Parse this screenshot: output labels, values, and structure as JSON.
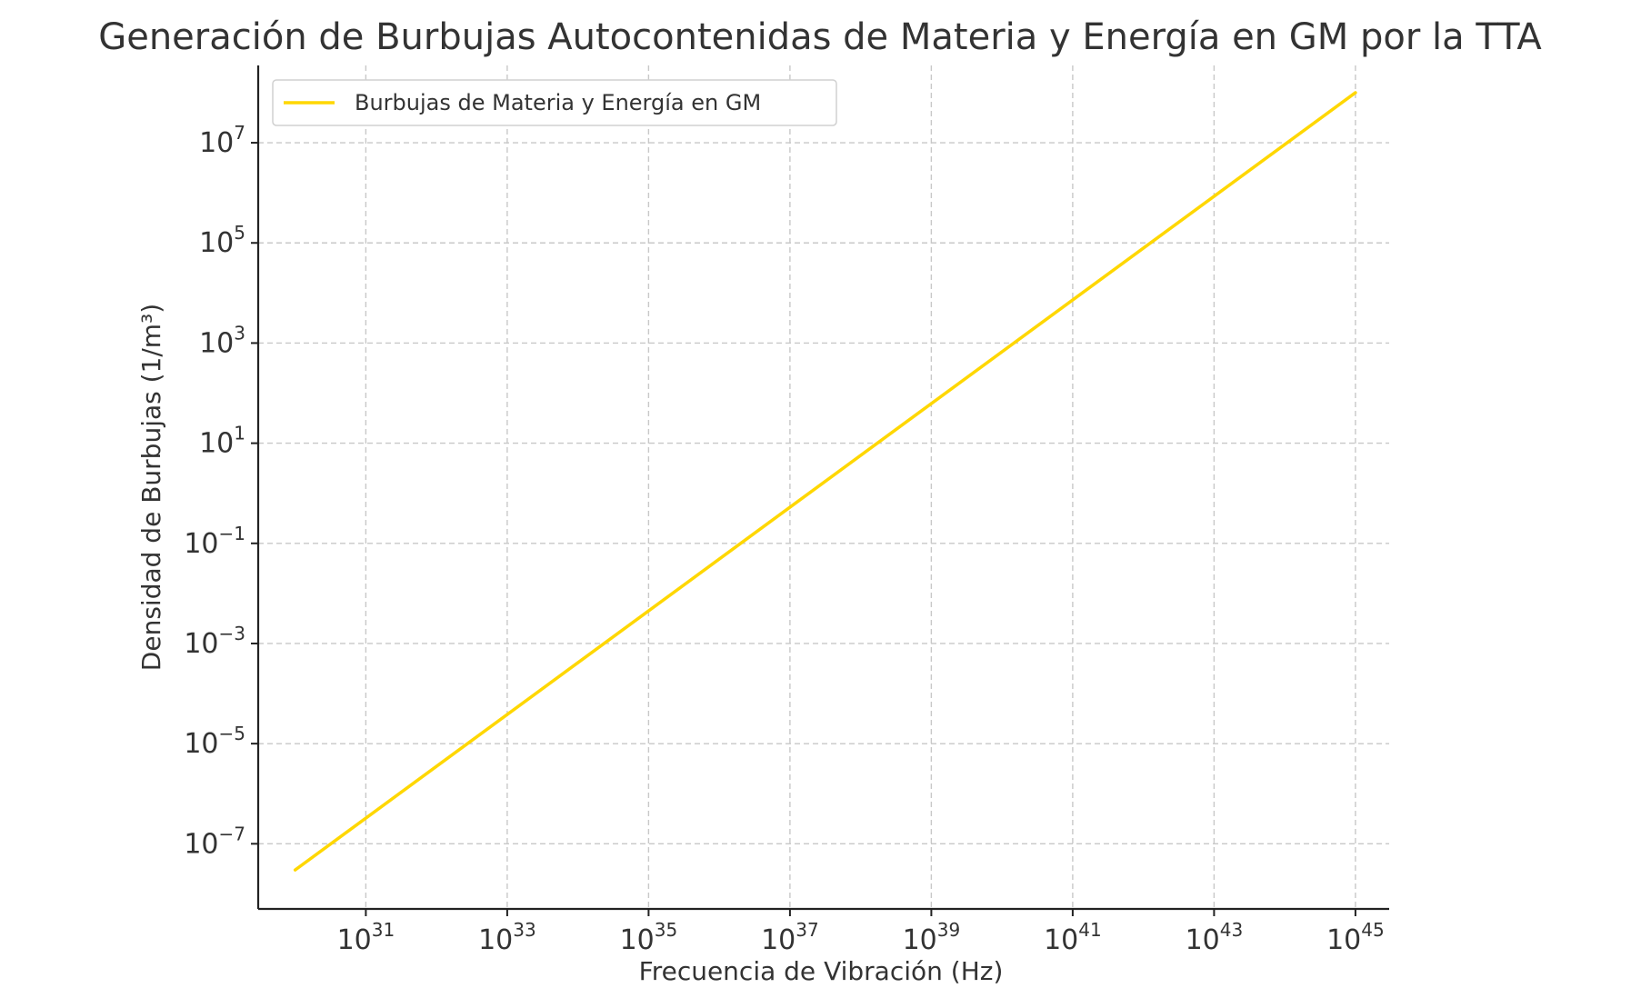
{
  "chart_data": {
    "type": "line",
    "title": "Generación de Burbujas Autocontenidas de Materia y Energía en GM por la TTA",
    "xlabel": "Frecuencia de Vibración (Hz)",
    "ylabel": "Densidad de Burbujas (1/m³)",
    "x_scale": "log",
    "y_scale": "log",
    "xlim": [
      3e+29,
      3e+45
    ],
    "ylim": [
      5e-09,
      350000000.0
    ],
    "grid": true,
    "legend_position": "upper-left",
    "x_ticks": [
      {
        "value": 1e+31,
        "base": "10",
        "exp": "31"
      },
      {
        "value": 1e+33,
        "base": "10",
        "exp": "33"
      },
      {
        "value": 1e+35,
        "base": "10",
        "exp": "35"
      },
      {
        "value": 1e+37,
        "base": "10",
        "exp": "37"
      },
      {
        "value": 1e+39,
        "base": "10",
        "exp": "39"
      },
      {
        "value": 1e+41,
        "base": "10",
        "exp": "41"
      },
      {
        "value": 1e+43,
        "base": "10",
        "exp": "43"
      },
      {
        "value": 1e+45,
        "base": "10",
        "exp": "45"
      }
    ],
    "y_ticks": [
      {
        "value": 1e-07,
        "base": "10",
        "exp": "−7"
      },
      {
        "value": 1e-05,
        "base": "10",
        "exp": "−5"
      },
      {
        "value": 0.001,
        "base": "10",
        "exp": "−3"
      },
      {
        "value": 0.1,
        "base": "10",
        "exp": "−1"
      },
      {
        "value": 10.0,
        "base": "10",
        "exp": "1"
      },
      {
        "value": 1000.0,
        "base": "10",
        "exp": "3"
      },
      {
        "value": 100000.0,
        "base": "10",
        "exp": "5"
      },
      {
        "value": 10000000.0,
        "base": "10",
        "exp": "7"
      }
    ],
    "series": [
      {
        "name": "Burbujas de Materia y Energía en GM",
        "color": "#FFD700",
        "x": [
          1e+30,
          1e+45
        ],
        "y": [
          3e-08,
          100000000.0
        ]
      }
    ]
  }
}
